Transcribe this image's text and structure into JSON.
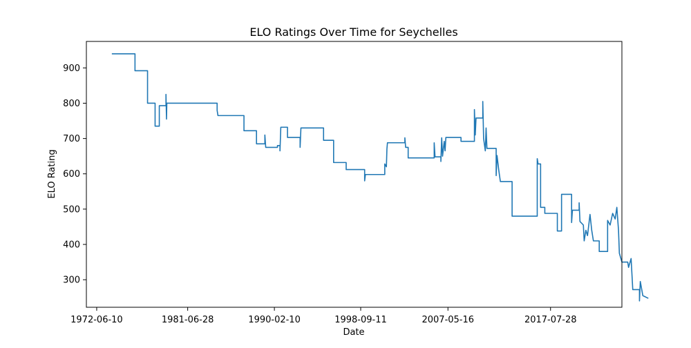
{
  "chart_data": {
    "type": "line",
    "title": "ELO Ratings Over Time for Seychelles",
    "xlabel": "Date",
    "ylabel": "ELO Rating",
    "x_ticks": [
      "1972-06-10",
      "1981-06-28",
      "1990-02-10",
      "1998-09-11",
      "2007-05-16",
      "2017-07-28"
    ],
    "y_ticks": [
      300,
      400,
      500,
      600,
      700,
      800,
      900
    ],
    "xlim": [
      "1971-06-01",
      "2024-09-01"
    ],
    "ylim": [
      222,
      975
    ],
    "grid": false,
    "line_color": "#1f77b4",
    "series": [
      {
        "name": "",
        "points": [
          [
            "1974-01-01",
            940
          ],
          [
            "1976-04-01",
            940
          ],
          [
            "1976-04-01",
            892
          ],
          [
            "1977-07-01",
            892
          ],
          [
            "1977-07-01",
            800
          ],
          [
            "1978-04-01",
            800
          ],
          [
            "1978-04-01",
            735
          ],
          [
            "1978-09-01",
            735
          ],
          [
            "1978-09-01",
            793
          ],
          [
            "1979-05-01",
            793
          ],
          [
            "1979-05-01",
            825
          ],
          [
            "1979-05-20",
            755
          ],
          [
            "1979-06-01",
            800
          ],
          [
            "1984-06-01",
            800
          ],
          [
            "1984-06-01",
            780
          ],
          [
            "1984-07-01",
            765
          ],
          [
            "1987-02-01",
            765
          ],
          [
            "1987-02-01",
            722
          ],
          [
            "1988-05-01",
            722
          ],
          [
            "1988-05-01",
            685
          ],
          [
            "1989-03-01",
            685
          ],
          [
            "1989-03-01",
            710
          ],
          [
            "1989-04-01",
            675
          ],
          [
            "1990-06-01",
            675
          ],
          [
            "1990-06-01",
            680
          ],
          [
            "1990-09-01",
            680
          ],
          [
            "1990-09-01",
            665
          ],
          [
            "1990-10-01",
            732
          ],
          [
            "1991-06-01",
            732
          ],
          [
            "1991-06-01",
            703
          ],
          [
            "1992-09-01",
            703
          ],
          [
            "1992-09-01",
            675
          ],
          [
            "1992-10-01",
            730
          ],
          [
            "1995-01-01",
            730
          ],
          [
            "1995-01-01",
            695
          ],
          [
            "1996-01-01",
            695
          ],
          [
            "1996-01-01",
            632
          ],
          [
            "1997-04-01",
            632
          ],
          [
            "1997-04-01",
            612
          ],
          [
            "1999-02-01",
            612
          ],
          [
            "1999-02-01",
            580
          ],
          [
            "1999-03-01",
            598
          ],
          [
            "2001-02-01",
            598
          ],
          [
            "2001-02-01",
            628
          ],
          [
            "2001-04-01",
            620
          ],
          [
            "2001-04-20",
            670
          ],
          [
            "2001-05-10",
            688
          ],
          [
            "2003-02-01",
            688
          ],
          [
            "2003-02-01",
            702
          ],
          [
            "2003-03-01",
            675
          ],
          [
            "2003-06-01",
            675
          ],
          [
            "2003-06-01",
            645
          ],
          [
            "2006-01-01",
            645
          ],
          [
            "2006-01-01",
            688
          ],
          [
            "2006-02-01",
            648
          ],
          [
            "2006-09-01",
            648
          ],
          [
            "2006-09-01",
            635
          ],
          [
            "2006-10-01",
            702
          ],
          [
            "2006-11-01",
            650
          ],
          [
            "2007-01-01",
            692
          ],
          [
            "2007-02-01",
            665
          ],
          [
            "2007-03-01",
            703
          ],
          [
            "2008-09-01",
            703
          ],
          [
            "2008-09-01",
            692
          ],
          [
            "2010-01-01",
            692
          ],
          [
            "2010-01-01",
            782
          ],
          [
            "2010-02-01",
            710
          ],
          [
            "2010-03-01",
            758
          ],
          [
            "2010-11-01",
            758
          ],
          [
            "2010-11-01",
            805
          ],
          [
            "2010-12-01",
            700
          ],
          [
            "2011-02-01",
            665
          ],
          [
            "2011-03-01",
            730
          ],
          [
            "2011-04-01",
            672
          ],
          [
            "2012-03-01",
            672
          ],
          [
            "2012-03-01",
            595
          ],
          [
            "2012-04-01",
            652
          ],
          [
            "2012-06-01",
            612
          ],
          [
            "2012-08-01",
            578
          ],
          [
            "2013-10-01",
            578
          ],
          [
            "2013-10-01",
            480
          ],
          [
            "2016-04-01",
            480
          ],
          [
            "2016-04-01",
            643
          ],
          [
            "2016-05-01",
            628
          ],
          [
            "2016-08-01",
            628
          ],
          [
            "2016-08-01",
            505
          ],
          [
            "2017-01-01",
            505
          ],
          [
            "2017-01-01",
            488
          ],
          [
            "2018-04-01",
            488
          ],
          [
            "2018-04-01",
            438
          ],
          [
            "2018-09-01",
            438
          ],
          [
            "2018-09-01",
            542
          ],
          [
            "2019-09-01",
            542
          ],
          [
            "2019-09-01",
            462
          ],
          [
            "2019-10-01",
            497
          ],
          [
            "2020-06-01",
            497
          ],
          [
            "2020-06-01",
            518
          ],
          [
            "2020-07-01",
            465
          ],
          [
            "2020-11-01",
            455
          ],
          [
            "2020-12-01",
            410
          ],
          [
            "2021-02-01",
            440
          ],
          [
            "2021-04-01",
            425
          ],
          [
            "2021-07-01",
            485
          ],
          [
            "2021-09-01",
            440
          ],
          [
            "2021-11-01",
            410
          ],
          [
            "2022-06-01",
            410
          ],
          [
            "2022-06-01",
            380
          ],
          [
            "2023-04-01",
            380
          ],
          [
            "2023-04-01",
            468
          ],
          [
            "2023-07-01",
            455
          ],
          [
            "2023-10-01",
            488
          ],
          [
            "2024-01-01",
            472
          ],
          [
            "2024-03-01",
            505
          ],
          [
            "2024-05-01",
            440
          ],
          [
            "2024-06-01",
            375
          ],
          [
            "2024-09-01",
            350
          ],
          [
            "2025-04-01",
            350
          ],
          [
            "2025-05-01",
            335
          ],
          [
            "2025-08-01",
            360
          ],
          [
            "2025-10-01",
            272
          ],
          [
            "2026-06-01",
            272
          ],
          [
            "2026-06-01",
            240
          ],
          [
            "2026-07-01",
            295
          ],
          [
            "2026-10-01",
            255
          ],
          [
            "2027-04-01",
            248
          ]
        ]
      }
    ]
  }
}
